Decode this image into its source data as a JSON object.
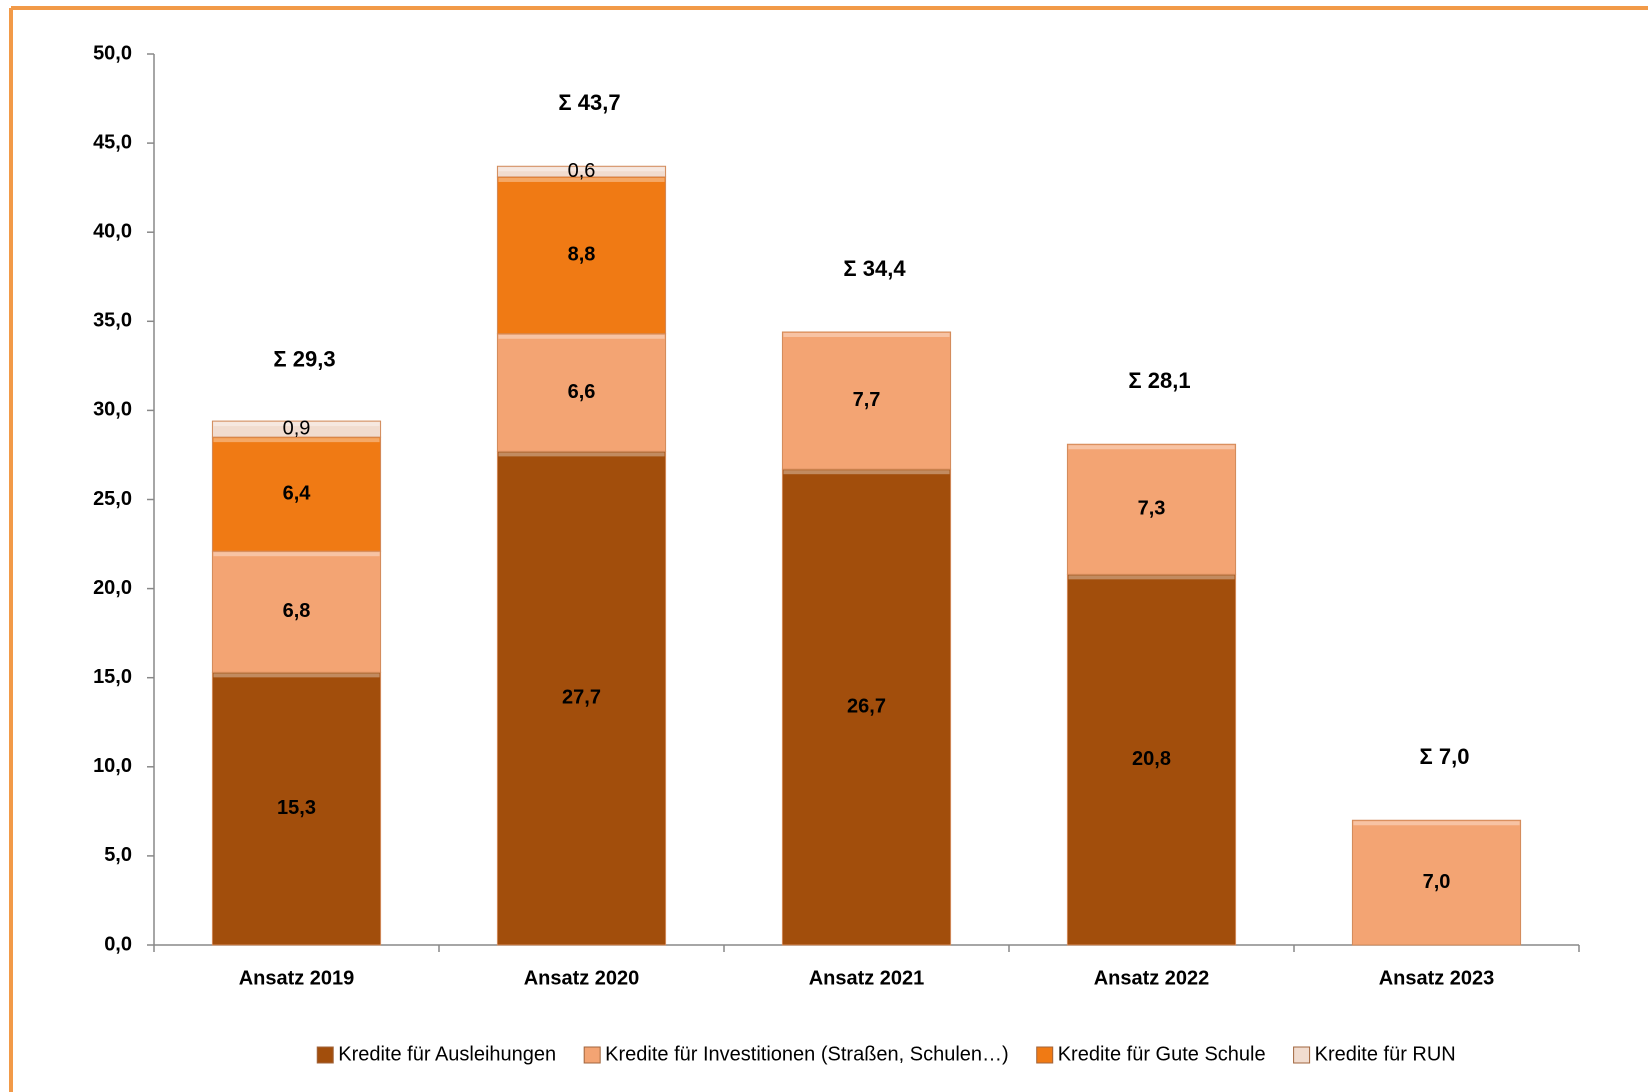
{
  "chart_data": {
    "type": "stacked-bar",
    "categories": [
      "Ansatz 2019",
      "Ansatz 2020",
      "Ansatz 2021",
      "Ansatz 2022",
      "Ansatz 2023"
    ],
    "series": [
      {
        "name": "Kredite für Ausleihungen",
        "color": "#a24e0c",
        "values": [
          15.3,
          27.7,
          26.7,
          20.8,
          null
        ],
        "value_labels": [
          "15,3",
          "27,7",
          "26,7",
          "20,8",
          null
        ]
      },
      {
        "name": "Kredite für Investitionen (Straßen, Schulen…)",
        "color": "#f3a473",
        "values": [
          6.8,
          6.6,
          7.7,
          7.3,
          7.0
        ],
        "value_labels": [
          "6,8",
          "6,6",
          "7,7",
          "7,3",
          "7,0"
        ]
      },
      {
        "name": "Kredite für Gute Schule",
        "color": "#f07a14",
        "values": [
          6.4,
          8.8,
          null,
          null,
          null
        ],
        "value_labels": [
          "6,4",
          "8,8",
          null,
          null,
          null
        ]
      },
      {
        "name": "Kredite für RUN",
        "color": "#f1dccf",
        "values": [
          0.9,
          0.6,
          null,
          null,
          null
        ],
        "value_labels": [
          "0,9",
          "0,6",
          null,
          null,
          null
        ]
      }
    ],
    "totals": [
      29.3,
      43.7,
      34.4,
      28.1,
      7.0
    ],
    "total_labels": [
      "Σ 29,3",
      "Σ 43,7",
      "Σ 34,4",
      "Σ 28,1",
      "Σ 7,0"
    ],
    "ylim": [
      0,
      50
    ],
    "yticks": [
      {
        "value": 0,
        "label": "0,0"
      },
      {
        "value": 5,
        "label": "5,0"
      },
      {
        "value": 10,
        "label": "10,0"
      },
      {
        "value": 15,
        "label": "15,0"
      },
      {
        "value": 20,
        "label": "20,0"
      },
      {
        "value": 25,
        "label": "25,0"
      },
      {
        "value": 30,
        "label": "30,0"
      },
      {
        "value": 35,
        "label": "35,0"
      },
      {
        "value": 40,
        "label": "40,0"
      },
      {
        "value": 45,
        "label": "45,0"
      },
      {
        "value": 50,
        "label": "50,0"
      }
    ],
    "legend": "bottom"
  }
}
